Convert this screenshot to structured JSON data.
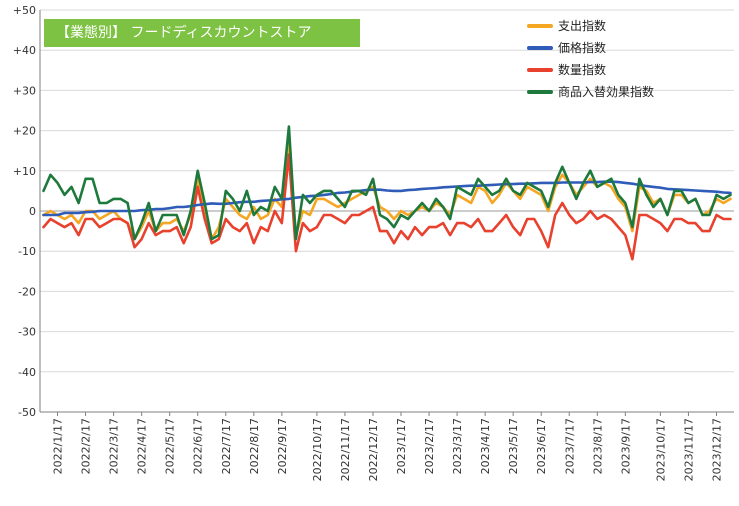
{
  "title": "【業態別】 フードディスカウントストア",
  "chart_data": {
    "type": "line",
    "title": "【業態別】 フードディスカウントストア",
    "ylim": [
      -50,
      50
    ],
    "yticks": [
      "-50",
      "-40",
      "-30",
      "-20",
      "-10",
      "0",
      "+10",
      "+20",
      "+30",
      "+40",
      "+50"
    ],
    "yticks_values": [
      -50,
      -40,
      -30,
      -20,
      -10,
      0,
      10,
      20,
      30,
      40,
      50
    ],
    "xlabels": [
      "2022/1/17",
      "2022/2/17",
      "2022/3/17",
      "2022/4/17",
      "2022/5/17",
      "2022/6/17",
      "2022/7/17",
      "2022/8/17",
      "2022/9/17",
      "2022/10/17",
      "2022/11/17",
      "2022/12/17",
      "2023/1/17",
      "2023/2/17",
      "2023/3/17",
      "2023/4/17",
      "2023/5/17",
      "2023/6/17",
      "2023/7/17",
      "2023/8/17",
      "2023/9/17",
      "2023/10/17",
      "2023/11/17",
      "2023/12/17"
    ],
    "xlabel_positions": [
      2,
      6,
      10,
      14,
      18,
      22,
      26,
      30,
      34,
      39,
      43,
      47,
      51,
      55,
      59,
      63,
      67,
      71,
      75,
      79,
      83,
      88,
      92,
      96
    ],
    "grid": "horizontal",
    "legend_position": "top-right",
    "series": [
      {
        "name": "支出指数",
        "color": "#f5a623",
        "values": [
          -1,
          0,
          -1,
          -2,
          -1,
          -3,
          0,
          0,
          -2,
          -1,
          0,
          -2,
          -3,
          -7,
          -4,
          0,
          -5,
          -3,
          -3,
          -2,
          -5,
          -1,
          8,
          0,
          -7,
          -4,
          3,
          1,
          -1,
          -2,
          1,
          -2,
          -1,
          3,
          1,
          17,
          -6,
          0,
          -1,
          3,
          3,
          2,
          1,
          2,
          3,
          4,
          5,
          6,
          1,
          0,
          -2,
          0,
          -1,
          0,
          1,
          0,
          2,
          1,
          -1,
          4,
          3,
          2,
          6,
          5,
          2,
          4,
          7,
          5,
          3,
          6,
          5,
          4,
          0,
          6,
          9,
          7,
          4,
          6,
          8,
          6,
          7,
          6,
          3,
          1,
          -5,
          6,
          5,
          2,
          3,
          -1,
          4,
          4,
          2,
          3,
          -1,
          0,
          3,
          2,
          3
        ]
      },
      {
        "name": "価格指数",
        "color": "#2e5cb8",
        "values": [
          -1,
          -1,
          -1,
          -0.5,
          -0.5,
          -0.5,
          -0.3,
          -0.2,
          0,
          0,
          0,
          0,
          0,
          0,
          0.2,
          0.3,
          0.5,
          0.5,
          0.7,
          1,
          1,
          1.2,
          1.5,
          1.7,
          1.9,
          1.8,
          1.8,
          2,
          2.2,
          2.3,
          2.3,
          2.5,
          2.6,
          2.7,
          2.9,
          3,
          3.3,
          3.5,
          3.7,
          3.8,
          4,
          4.2,
          4.5,
          4.6,
          4.8,
          5,
          5.2,
          5.3,
          5.3,
          5.1,
          5,
          5,
          5.2,
          5.3,
          5.5,
          5.6,
          5.7,
          5.9,
          6,
          6.1,
          6.2,
          6.3,
          6.3,
          6.4,
          6.5,
          6.6,
          6.7,
          6.7,
          6.8,
          6.8,
          6.9,
          7,
          7,
          7,
          7.1,
          7.1,
          7.1,
          7.1,
          7.2,
          7.2,
          7.3,
          7.3,
          7.2,
          7,
          6.8,
          6.5,
          6.2,
          6,
          5.8,
          5.5,
          5.4,
          5.3,
          5.2,
          5.1,
          5,
          4.9,
          4.8,
          4.6,
          4.5
        ]
      },
      {
        "name": "数量指数",
        "color": "#e8412e",
        "values": [
          -4,
          -2,
          -3,
          -4,
          -3,
          -6,
          -2,
          -2,
          -4,
          -3,
          -2,
          -2,
          -3,
          -9,
          -7,
          -3,
          -6,
          -5,
          -5,
          -4,
          -8,
          -4,
          6,
          -2,
          -8,
          -7,
          -2,
          -4,
          -5,
          -3,
          -8,
          -4,
          -5,
          0,
          -3,
          14,
          -10,
          -3,
          -5,
          -4,
          -1,
          -1,
          -2,
          -3,
          -1,
          -1,
          0,
          1,
          -5,
          -5,
          -8,
          -5,
          -7,
          -4,
          -6,
          -4,
          -4,
          -3,
          -6,
          -3,
          -3,
          -4,
          -2,
          -5,
          -5,
          -3,
          -1,
          -4,
          -6,
          -2,
          -2,
          -5,
          -9,
          -1,
          2,
          -1,
          -3,
          -2,
          0,
          -2,
          -1,
          -2,
          -4,
          -6,
          -12,
          -1,
          -1,
          -2,
          -3,
          -5,
          -2,
          -2,
          -3,
          -3,
          -5,
          -5,
          -1,
          -2,
          -2
        ]
      },
      {
        "name": "商品入替効果指数",
        "color": "#1e7a3c",
        "values": [
          5,
          9,
          7,
          4,
          6,
          2,
          8,
          8,
          2,
          2,
          3,
          3,
          2,
          -7,
          -3,
          2,
          -5,
          -1,
          -1,
          -1,
          -6,
          0,
          10,
          2,
          -7,
          -6,
          5,
          3,
          0,
          5,
          -1,
          1,
          0,
          6,
          3,
          21,
          -7,
          4,
          2,
          4,
          5,
          5,
          3,
          1,
          5,
          5,
          4,
          8,
          -1,
          -2,
          -4,
          -1,
          -2,
          0,
          2,
          0,
          3,
          1,
          -2,
          6,
          5,
          4,
          8,
          6,
          4,
          5,
          8,
          5,
          4,
          7,
          6,
          5,
          1,
          7,
          11,
          7,
          3,
          7,
          10,
          6,
          7,
          8,
          4,
          2,
          -4,
          8,
          4,
          1,
          3,
          -1,
          5,
          5,
          2,
          3,
          -1,
          -1,
          4,
          3,
          4
        ]
      }
    ]
  }
}
